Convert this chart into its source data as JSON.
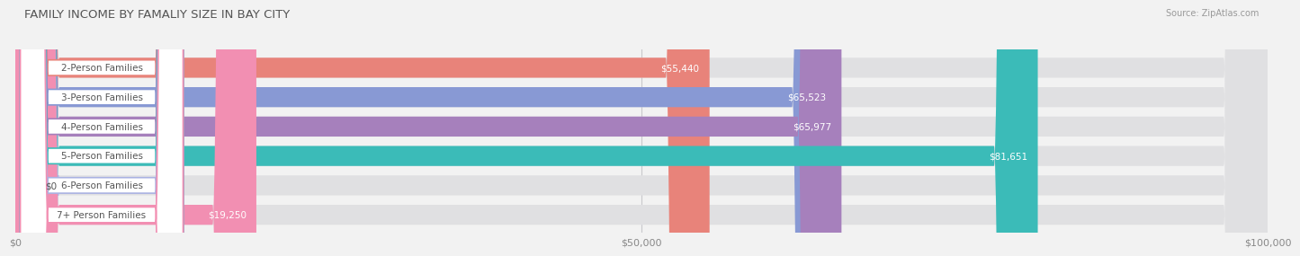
{
  "title": "FAMILY INCOME BY FAMALIY SIZE IN BAY CITY",
  "source": "Source: ZipAtlas.com",
  "categories": [
    "2-Person Families",
    "3-Person Families",
    "4-Person Families",
    "5-Person Families",
    "6-Person Families",
    "7+ Person Families"
  ],
  "values": [
    55440,
    65523,
    65977,
    81651,
    0,
    19250
  ],
  "bar_colors": [
    "#E8837A",
    "#8899D4",
    "#A680BC",
    "#3BBBB8",
    "#AAB2E2",
    "#F28FB2"
  ],
  "value_labels": [
    "$55,440",
    "$65,523",
    "$65,977",
    "$81,651",
    "$0",
    "$19,250"
  ],
  "xlim": [
    0,
    100000
  ],
  "xticks": [
    0,
    50000,
    100000
  ],
  "xticklabels": [
    "$0",
    "$50,000",
    "$100,000"
  ],
  "bg_color": "#F2F2F2",
  "bar_bg_color": "#E0E0E2",
  "title_fontsize": 9.5,
  "source_fontsize": 7,
  "label_fontsize": 7.5,
  "value_fontsize": 7.5,
  "tick_fontsize": 8
}
